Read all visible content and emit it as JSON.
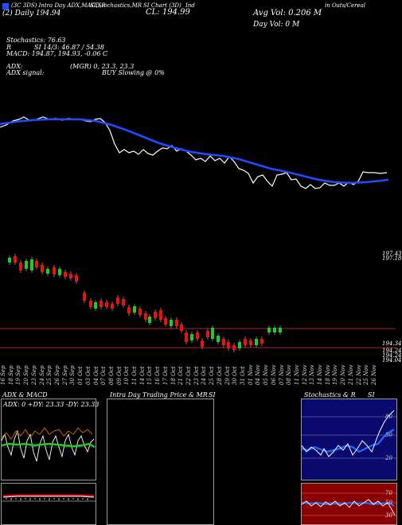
{
  "header": {
    "line1": "(3C 3DS) Intra Day ADX,MACD,R",
    "line1b": "SI,Stochastics,MR",
    "line1c": "SI Chart (3D)",
    "line1d": "Ind",
    "line1e": "in Oats/Cereal",
    "line2": "(2) Daily 194.94",
    "cl": "CL: 194.99",
    "avg_vol": "Avg Vol: 0.206  M",
    "day_vol": "Day Vol: 0   M",
    "stoch": "Stochastics: 76.63",
    "r_label": "R",
    "si": "SI 14/3: 46.87 / 54.38",
    "macd": "MACD: 194.87, 194.93, -0.06  C",
    "adx": "ADX:",
    "mgr": "(MGR) 0, 23.3, 23.3",
    "adx_signal": "ADX  signal:",
    "buy_slowing": "BUY Slowing @ 0%"
  },
  "price_labels": {
    "top_right": "197.43",
    "top_right2": "197.18",
    "low1": "194.34",
    "low2": "194.24",
    "low3": "194.24",
    "low4": "194.04"
  },
  "dates": [
    "16 Sep",
    "18 Sep",
    "19 Sep",
    "20 Sep",
    "23 Sep",
    "24 Sep",
    "25 Sep",
    "26 Sep",
    "27 Sep",
    "30 Sep",
    "01 Oct",
    "03 Oct",
    "04 Oct",
    "07 Oct",
    "08 Oct",
    "09 Oct",
    "10 Oct",
    "11 Oct",
    "14 Oct",
    "15 Oct",
    "16 Oct",
    "17 Oct",
    "18 Oct",
    "21 Oct",
    "22 Oct",
    "23 Oct",
    "24 Oct",
    "25 Oct",
    "28 Oct",
    "29 Oct",
    "30 Oct",
    "31 Oct",
    "01 Nov",
    "04 Nov",
    "05 Nov",
    "06 Nov",
    "07 Nov",
    "08 Nov",
    "11 Nov",
    "12 Nov",
    "13 Nov",
    "14 Nov",
    "18 Nov",
    "19 Nov",
    "20 Nov",
    "21 Nov",
    "22 Nov",
    "25 Nov",
    "26 Nov"
  ],
  "bottom_panels": {
    "adx_title": "ADX  & MACD",
    "adx_readout": "ADX: 0  +DY: 23.33  -DY: 23.33",
    "intraday_title": "Intra  Day Trading Price  & MR",
    "intraday_si": "SI",
    "stoch_title": "Stochastics & R",
    "stoch_si": "SI",
    "stoch_levels": [
      "80",
      "50",
      "20"
    ],
    "rsi_levels": [
      "70",
      "50",
      "30"
    ]
  },
  "colors": {
    "blue_ma": "#1e4cff",
    "price_line": "#ffffff",
    "candle_up": "#22cc22",
    "candle_down": "#ee1111",
    "level_line": "#b22222",
    "green_hline": "#22cc22",
    "stoch_bg": "#0a0a6e",
    "rsi_bg": "#8b0000"
  }
}
